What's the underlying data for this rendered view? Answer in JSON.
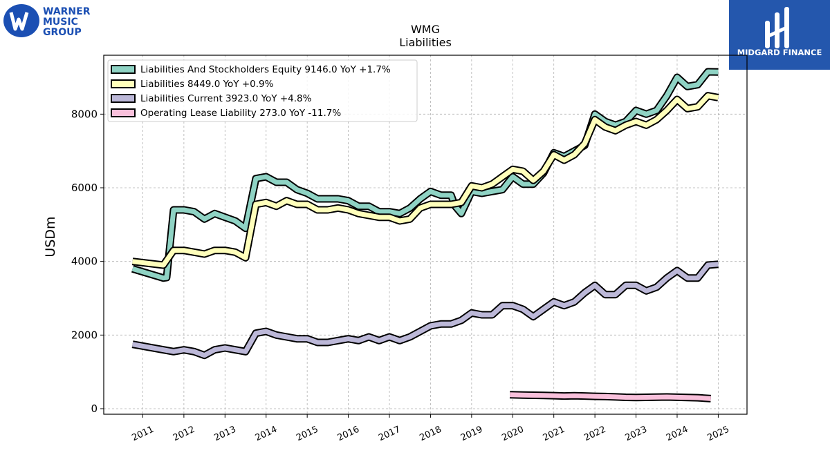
{
  "brand": {
    "left_logo_lines": [
      "WARNER",
      "MUSIC",
      "GROUP"
    ],
    "right_logo_text": "MIDGARD FINANCE",
    "colors": {
      "wmg_blue": "#1b4fb3",
      "midgard_blue": "#2457ad"
    }
  },
  "chart_data": {
    "type": "line",
    "title": "WMG",
    "subtitle": "Liabilities",
    "xlabel": "",
    "ylabel": "USDm",
    "ylim": [
      -150,
      9600
    ],
    "xlim": [
      2010.05,
      2025.7
    ],
    "yticks": [
      0,
      2000,
      4000,
      6000,
      8000
    ],
    "xticks": [
      2011,
      2012,
      2013,
      2014,
      2015,
      2016,
      2017,
      2018,
      2019,
      2020,
      2021,
      2022,
      2023,
      2024,
      2025
    ],
    "grid": true,
    "legend_position": "top-left",
    "series": [
      {
        "name": "Liabilities And Stockholders Equity",
        "legend_label": "Liabilities And Stockholders Equity  9146.0 YoY +1.7%",
        "color": "#8fd3c4",
        "x": [
          2010.75,
          2011.5,
          2011.58,
          2011.75,
          2012.0,
          2012.25,
          2012.5,
          2012.75,
          2013.0,
          2013.25,
          2013.5,
          2013.75,
          2014.0,
          2014.25,
          2014.5,
          2014.75,
          2015.0,
          2015.25,
          2015.5,
          2015.75,
          2016.0,
          2016.25,
          2016.5,
          2016.75,
          2017.0,
          2017.25,
          2017.5,
          2017.75,
          2018.0,
          2018.25,
          2018.5,
          2018.6,
          2018.75,
          2019.0,
          2019.25,
          2019.5,
          2019.75,
          2020.0,
          2020.25,
          2020.5,
          2020.75,
          2021.0,
          2021.25,
          2021.5,
          2021.75,
          2022.0,
          2022.25,
          2022.5,
          2022.75,
          2023.0,
          2023.25,
          2023.5,
          2023.75,
          2024.0,
          2024.25,
          2024.5,
          2024.75,
          2025.0
        ],
        "y": [
          3800,
          3550,
          3560,
          5400,
          5400,
          5350,
          5150,
          5300,
          5200,
          5100,
          4900,
          6250,
          6300,
          6150,
          6150,
          5950,
          5850,
          5700,
          5700,
          5700,
          5650,
          5500,
          5500,
          5350,
          5350,
          5300,
          5450,
          5700,
          5900,
          5800,
          5800,
          5500,
          5300,
          5900,
          5850,
          5900,
          5950,
          6300,
          6100,
          6100,
          6400,
          6950,
          6850,
          7000,
          7150,
          8000,
          7800,
          7700,
          7800,
          8100,
          8000,
          8100,
          8500,
          9000,
          8750,
          8800,
          9150,
          9146
        ]
      },
      {
        "name": "Liabilities",
        "legend_label": "Liabilities  8449.0 YoY +0.9%",
        "color": "#ffffbb",
        "x": [
          2010.75,
          2011.5,
          2011.75,
          2012.0,
          2012.25,
          2012.5,
          2012.75,
          2013.0,
          2013.25,
          2013.5,
          2013.75,
          2014.0,
          2014.25,
          2014.5,
          2014.75,
          2015.0,
          2015.25,
          2015.5,
          2015.75,
          2016.0,
          2016.25,
          2016.5,
          2016.75,
          2017.0,
          2017.25,
          2017.5,
          2017.75,
          2018.0,
          2018.25,
          2018.5,
          2018.75,
          2019.0,
          2019.25,
          2019.5,
          2019.75,
          2020.0,
          2020.25,
          2020.5,
          2020.75,
          2021.0,
          2021.25,
          2021.5,
          2021.75,
          2022.0,
          2022.25,
          2022.5,
          2022.75,
          2023.0,
          2023.25,
          2023.5,
          2023.75,
          2024.0,
          2024.25,
          2024.5,
          2024.75,
          2025.0
        ],
        "y": [
          4000,
          3900,
          4300,
          4300,
          4250,
          4200,
          4300,
          4300,
          4250,
          4100,
          5550,
          5600,
          5500,
          5650,
          5550,
          5550,
          5400,
          5400,
          5450,
          5400,
          5300,
          5250,
          5200,
          5200,
          5100,
          5150,
          5450,
          5550,
          5550,
          5550,
          5600,
          6050,
          6000,
          6100,
          6300,
          6500,
          6450,
          6200,
          6450,
          6900,
          6750,
          6900,
          7200,
          7850,
          7650,
          7550,
          7700,
          7800,
          7700,
          7850,
          8100,
          8400,
          8150,
          8200,
          8500,
          8449
        ]
      },
      {
        "name": "Liabilities Current",
        "legend_label": "Liabilities Current  3923.0 YoY +4.8%",
        "color": "#bcb8d8",
        "x": [
          2010.75,
          2011.5,
          2011.75,
          2012.0,
          2012.25,
          2012.5,
          2012.75,
          2013.0,
          2013.25,
          2013.5,
          2013.75,
          2014.0,
          2014.25,
          2014.5,
          2014.75,
          2015.0,
          2015.25,
          2015.5,
          2015.75,
          2016.0,
          2016.25,
          2016.5,
          2016.75,
          2017.0,
          2017.25,
          2017.5,
          2017.75,
          2018.0,
          2018.25,
          2018.5,
          2018.75,
          2019.0,
          2019.25,
          2019.5,
          2019.75,
          2020.0,
          2020.25,
          2020.5,
          2020.75,
          2021.0,
          2021.25,
          2021.5,
          2021.75,
          2022.0,
          2022.25,
          2022.5,
          2022.75,
          2023.0,
          2023.25,
          2023.5,
          2023.75,
          2024.0,
          2024.25,
          2024.5,
          2024.75,
          2025.0
        ],
        "y": [
          1750,
          1600,
          1550,
          1600,
          1550,
          1450,
          1600,
          1650,
          1600,
          1550,
          2050,
          2100,
          2000,
          1950,
          1900,
          1900,
          1800,
          1800,
          1850,
          1900,
          1850,
          1950,
          1850,
          1950,
          1850,
          1950,
          2100,
          2250,
          2300,
          2300,
          2400,
          2600,
          2550,
          2550,
          2800,
          2800,
          2700,
          2500,
          2700,
          2900,
          2800,
          2900,
          3150,
          3350,
          3100,
          3100,
          3350,
          3350,
          3200,
          3300,
          3550,
          3750,
          3550,
          3550,
          3900,
          3923
        ]
      },
      {
        "name": "Operating Lease Liability",
        "legend_label": "Operating Lease Liability  273.0 YoY -11.7%",
        "color": "#f9c0db",
        "x": [
          2019.93,
          2020.25,
          2020.5,
          2020.75,
          2021.0,
          2021.25,
          2021.5,
          2021.75,
          2022.0,
          2022.25,
          2022.5,
          2022.75,
          2023.0,
          2023.25,
          2023.5,
          2023.75,
          2024.0,
          2024.25,
          2024.5,
          2024.82
        ],
        "y": [
          380,
          370,
          365,
          360,
          355,
          345,
          350,
          345,
          335,
          330,
          320,
          310,
          305,
          310,
          315,
          318,
          312,
          305,
          298,
          273
        ]
      }
    ]
  }
}
